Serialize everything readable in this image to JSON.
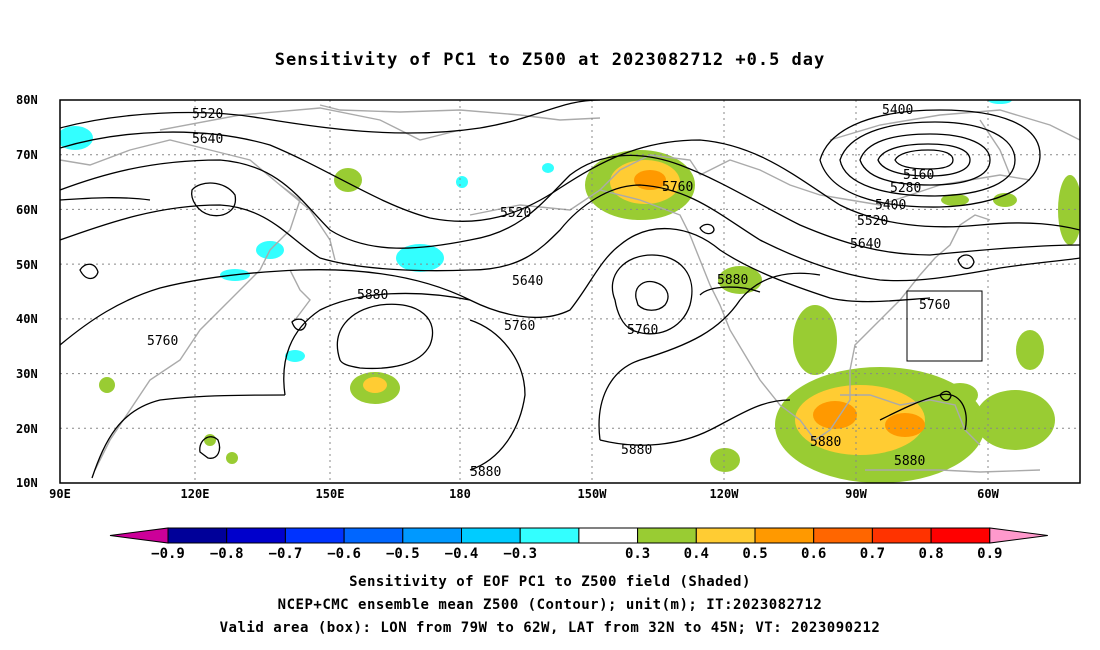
{
  "title": "Sensitivity of PC1 to Z500 at 2023082712 +0.5 day",
  "map": {
    "lat_labels": [
      "80N",
      "70N",
      "60N",
      "50N",
      "40N",
      "30N",
      "20N",
      "10N"
    ],
    "lon_labels": [
      "90E",
      "120E",
      "150E",
      "180",
      "150W",
      "120W",
      "90W",
      "60W"
    ],
    "contour_labels": [
      {
        "text": "5520"
      },
      {
        "text": "5640"
      },
      {
        "text": "5400"
      },
      {
        "text": "5160"
      },
      {
        "text": "5280"
      },
      {
        "text": "5400"
      },
      {
        "text": "5520"
      },
      {
        "text": "5640"
      },
      {
        "text": "5760"
      },
      {
        "text": "5520"
      },
      {
        "text": "5640"
      },
      {
        "text": "5760"
      },
      {
        "text": "5880"
      },
      {
        "text": "5880"
      },
      {
        "text": "5760"
      },
      {
        "text": "5760"
      },
      {
        "text": "5760"
      },
      {
        "text": "5880"
      },
      {
        "text": "5880"
      },
      {
        "text": "5880"
      },
      {
        "text": "5880"
      }
    ],
    "valid_box": {
      "lon_min": 79,
      "lon_max": 62,
      "lat_min": 32,
      "lat_max": 45
    },
    "shading_colors": {
      "positive": [
        "#99cc33",
        "#ffcc33",
        "#ff9900",
        "#ff6600"
      ],
      "negative": [
        "#33ffff",
        "#00ccff"
      ]
    }
  },
  "colorbar": {
    "ticks": [
      "−0.9",
      "−0.8",
      "−0.7",
      "−0.6",
      "−0.5",
      "−0.4",
      "−0.3",
      "0.3",
      "0.4",
      "0.5",
      "0.6",
      "0.7",
      "0.8",
      "0.9"
    ],
    "colors": [
      "#cc0099",
      "#000099",
      "#0000cc",
      "#0033ff",
      "#0066ff",
      "#0099ff",
      "#00ccff",
      "#33ffff",
      "#ffffff",
      "#99cc33",
      "#ffcc33",
      "#ff9900",
      "#ff6600",
      "#ff3300",
      "#ff0000",
      "#ff99cc"
    ]
  },
  "footer": {
    "line1": "Sensitivity of EOF PC1 to Z500 field (Shaded)",
    "line2": "NCEP+CMC ensemble mean Z500 (Contour); unit(m); IT:2023082712",
    "line3": "Valid area (box): LON from 79W to 62W, LAT from 32N to 45N; VT: 2023090212"
  }
}
